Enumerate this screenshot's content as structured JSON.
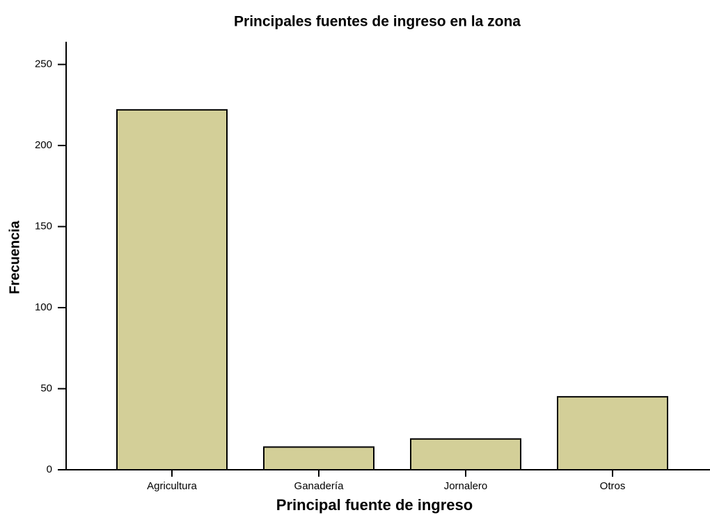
{
  "chart_data": {
    "type": "bar",
    "title": "Principales fuentes de ingreso en la zona",
    "x_label": "Principal fuente de ingreso",
    "y_label": "Frecuencia",
    "categories": [
      "Agricultura",
      "Ganadería",
      "Jornalero",
      "Otros"
    ],
    "values": [
      222,
      14,
      19,
      45
    ],
    "color": "#d3cf98",
    "ylim": [
      0,
      264
    ],
    "yticks": [
      0,
      50,
      100,
      150,
      200,
      250
    ],
    "grid": false
  }
}
